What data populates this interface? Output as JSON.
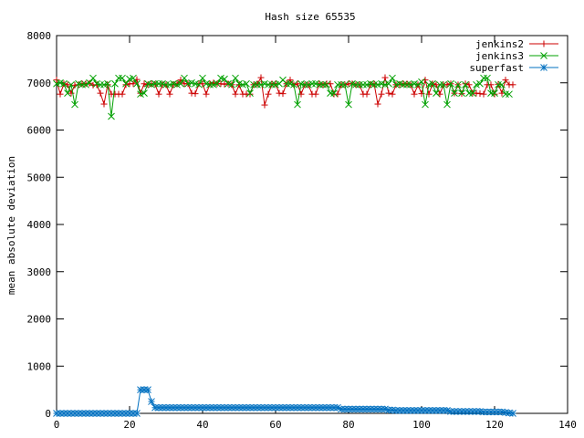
{
  "chart_data": {
    "type": "line",
    "title": "Hash size 65535",
    "xlabel": "",
    "ylabel": "mean absolute deviation",
    "xlim": [
      0,
      140
    ],
    "ylim": [
      0,
      8000
    ],
    "x_ticks": [
      0,
      20,
      40,
      60,
      80,
      100,
      120,
      140
    ],
    "y_ticks": [
      0,
      1000,
      2000,
      3000,
      4000,
      5000,
      6000,
      7000,
      8000
    ],
    "grid": false,
    "legend_position": "top-right",
    "series": [
      {
        "name": "jenkins2",
        "color": "#cc0000",
        "marker": "plus",
        "x_start": 0,
        "values": [
          7060,
          6760,
          6980,
          6960,
          6780,
          6950,
          6960,
          6980,
          6980,
          6990,
          6950,
          6960,
          6780,
          6550,
          6960,
          6760,
          6760,
          6760,
          6760,
          6960,
          6980,
          6980,
          7070,
          6780,
          6980,
          6960,
          6980,
          6970,
          6760,
          6960,
          6960,
          6760,
          6960,
          6980,
          7060,
          6980,
          6980,
          6780,
          6770,
          6980,
          6980,
          6760,
          6980,
          7000,
          6980,
          6980,
          6970,
          6980,
          6960,
          6760,
          6960,
          6760,
          6760,
          6760,
          6960,
          6980,
          7110,
          6530,
          6760,
          6980,
          6980,
          6780,
          6770,
          6980,
          7060,
          6960,
          6980,
          6760,
          6960,
          6960,
          6760,
          6760,
          6980,
          6960,
          6980,
          6980,
          6760,
          6760,
          6960,
          6960,
          6980,
          6980,
          6960,
          6960,
          6760,
          6760,
          6960,
          6980,
          6550,
          6760,
          7110,
          6780,
          6760,
          6960,
          6960,
          6980,
          6980,
          6960,
          6760,
          6960,
          6770,
          7060,
          6760,
          6980,
          6960,
          6760,
          6960,
          6960,
          6980,
          6780,
          6960,
          6770,
          6980,
          6960,
          6780,
          6780,
          6770,
          6760,
          6960,
          6960,
          6760,
          6970,
          6780,
          7060,
          6960,
          6960
        ]
      },
      {
        "name": "jenkins3",
        "color": "#00a000",
        "marker": "cross",
        "x_start": 0,
        "values": [
          6980,
          7000,
          6980,
          6780,
          6960,
          6540,
          6980,
          6960,
          6960,
          7000,
          7100,
          6980,
          6960,
          6960,
          6980,
          6290,
          6980,
          7100,
          7100,
          6980,
          7080,
          7100,
          6980,
          6760,
          6780,
          6980,
          6960,
          6980,
          6980,
          6980,
          6960,
          6960,
          6980,
          6960,
          6980,
          7100,
          6980,
          7000,
          6980,
          6960,
          7100,
          6980,
          6960,
          6960,
          6980,
          7100,
          7080,
          6980,
          6960,
          7100,
          6980,
          6960,
          6980,
          6780,
          6960,
          6960,
          6960,
          6980,
          6960,
          6960,
          6960,
          6980,
          7060,
          6980,
          6980,
          6960,
          6540,
          6980,
          6960,
          6960,
          6980,
          6980,
          6960,
          6960,
          6960,
          6780,
          6780,
          6960,
          6960,
          6960,
          6540,
          6980,
          6960,
          6960,
          6960,
          6960,
          6980,
          6960,
          6960,
          6980,
          6960,
          6980,
          7100,
          6960,
          6980,
          6960,
          6960,
          6960,
          6980,
          6960,
          7020,
          6540,
          6960,
          6980,
          6780,
          6960,
          6960,
          6540,
          6980,
          6780,
          6960,
          6780,
          6960,
          6780,
          6780,
          6960,
          6980,
          7100,
          7100,
          6780,
          6780,
          6960,
          6960,
          6760,
          6760
        ]
      },
      {
        "name": "superfast",
        "color": "#0070c0",
        "marker": "star",
        "x_start": 0,
        "values": [
          0,
          0,
          0,
          0,
          0,
          0,
          0,
          0,
          0,
          0,
          0,
          0,
          0,
          0,
          0,
          0,
          0,
          0,
          0,
          0,
          0,
          0,
          0,
          500,
          500,
          500,
          250,
          120,
          120,
          120,
          120,
          120,
          120,
          120,
          120,
          120,
          120,
          120,
          120,
          120,
          120,
          120,
          120,
          120,
          120,
          120,
          120,
          120,
          120,
          120,
          120,
          120,
          120,
          120,
          120,
          120,
          120,
          120,
          120,
          120,
          120,
          120,
          120,
          120,
          120,
          120,
          120,
          120,
          120,
          120,
          120,
          120,
          120,
          120,
          120,
          120,
          120,
          120,
          90,
          90,
          90,
          90,
          90,
          90,
          90,
          90,
          90,
          90,
          90,
          90,
          90,
          70,
          70,
          60,
          60,
          60,
          60,
          60,
          60,
          60,
          60,
          60,
          60,
          60,
          60,
          60,
          60,
          60,
          40,
          40,
          40,
          40,
          40,
          40,
          40,
          40,
          40,
          30,
          30,
          30,
          30,
          30,
          30,
          20,
          10,
          0
        ]
      }
    ]
  }
}
